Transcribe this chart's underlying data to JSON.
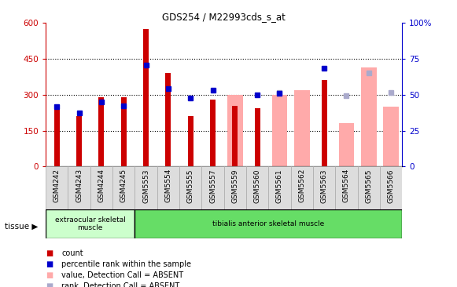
{
  "title": "GDS254 / M22993cds_s_at",
  "categories": [
    "GSM4242",
    "GSM4243",
    "GSM4244",
    "GSM4245",
    "GSM5553",
    "GSM5554",
    "GSM5555",
    "GSM5557",
    "GSM5559",
    "GSM5560",
    "GSM5561",
    "GSM5562",
    "GSM5563",
    "GSM5564",
    "GSM5565",
    "GSM5566"
  ],
  "count_values": [
    240,
    210,
    290,
    290,
    575,
    390,
    210,
    280,
    255,
    245,
    null,
    null,
    360,
    null,
    null,
    null
  ],
  "percentile_rank_left": [
    250,
    225,
    270,
    255,
    425,
    325,
    285,
    320,
    null,
    300,
    305,
    null,
    410,
    null,
    null,
    null
  ],
  "absent_value": [
    null,
    null,
    null,
    null,
    null,
    null,
    null,
    null,
    300,
    null,
    300,
    320,
    null,
    180,
    415,
    250
  ],
  "absent_rank_left": [
    null,
    null,
    null,
    null,
    null,
    null,
    null,
    null,
    null,
    null,
    310,
    null,
    null,
    295,
    390,
    310
  ],
  "tissue_groups": [
    {
      "label": "extraocular skeletal\nmuscle",
      "start": 0,
      "end": 4,
      "color": "#ccffcc"
    },
    {
      "label": "tibialis anterior skeletal muscle",
      "start": 4,
      "end": 16,
      "color": "#66dd66"
    }
  ],
  "ylim_left": [
    0,
    600
  ],
  "ylim_right": [
    0,
    100
  ],
  "yticks_left": [
    0,
    150,
    300,
    450,
    600
  ],
  "yticks_right": [
    0,
    25,
    50,
    75,
    100
  ],
  "color_count": "#cc0000",
  "color_rank": "#0000cc",
  "color_absent_value": "#ffaaaa",
  "color_absent_rank": "#aaaacc",
  "grid_color": "black",
  "grid_style": "dotted"
}
